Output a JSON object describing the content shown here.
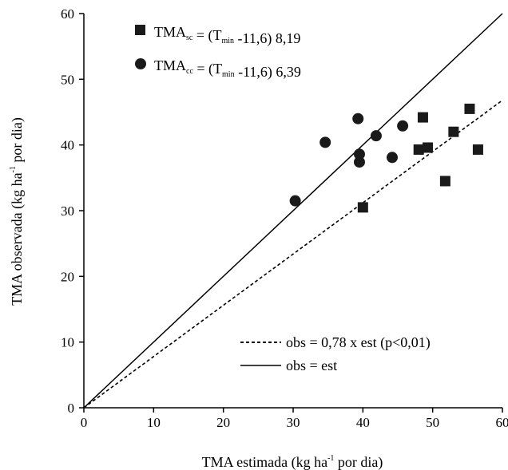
{
  "chart_data": {
    "type": "scatter",
    "xlabel": {
      "main": "TMA estimada (kg ha",
      "sup": "-1",
      "tail": " por dia)"
    },
    "ylabel": {
      "main": "TMA observada (kg ha",
      "sup": "-1",
      "tail": " por dia)"
    },
    "xlim": [
      0,
      60
    ],
    "ylim": [
      0,
      60
    ],
    "xticks": [
      0,
      10,
      20,
      30,
      40,
      50,
      60
    ],
    "yticks": [
      0,
      10,
      20,
      30,
      40,
      50,
      60
    ],
    "grid": false,
    "series": [
      {
        "marker": "square",
        "color": "#1a1a1a",
        "legend": {
          "pre": "TMA",
          "sub": "sc",
          "mid": " = (T",
          "sub2": "min",
          "post": " -11,6) 8,19"
        },
        "points": [
          [
            40,
            30.5
          ],
          [
            48,
            39.3
          ],
          [
            48.6,
            44.2
          ],
          [
            49.3,
            39.6
          ],
          [
            51.8,
            34.5
          ],
          [
            53,
            42
          ],
          [
            55.3,
            45.5
          ],
          [
            56.5,
            39.3
          ]
        ]
      },
      {
        "marker": "circle",
        "color": "#1a1a1a",
        "legend": {
          "pre": "TMA",
          "sub": "cc",
          "mid": " = (T",
          "sub2": "min",
          "post": " -11,6) 6,39"
        },
        "points": [
          [
            30.3,
            31.5
          ],
          [
            34.6,
            40.4
          ],
          [
            39.3,
            44
          ],
          [
            39.5,
            38.6
          ],
          [
            39.5,
            37.4
          ],
          [
            41.9,
            41.4
          ],
          [
            44.2,
            38.1
          ],
          [
            45.7,
            42.9
          ]
        ]
      }
    ],
    "lines": [
      {
        "name": "obs = 0,78 x est (p<0,01)",
        "slope": 0.78,
        "style": "dashed"
      },
      {
        "name": "obs = est",
        "slope": 1.0,
        "style": "solid"
      }
    ]
  }
}
